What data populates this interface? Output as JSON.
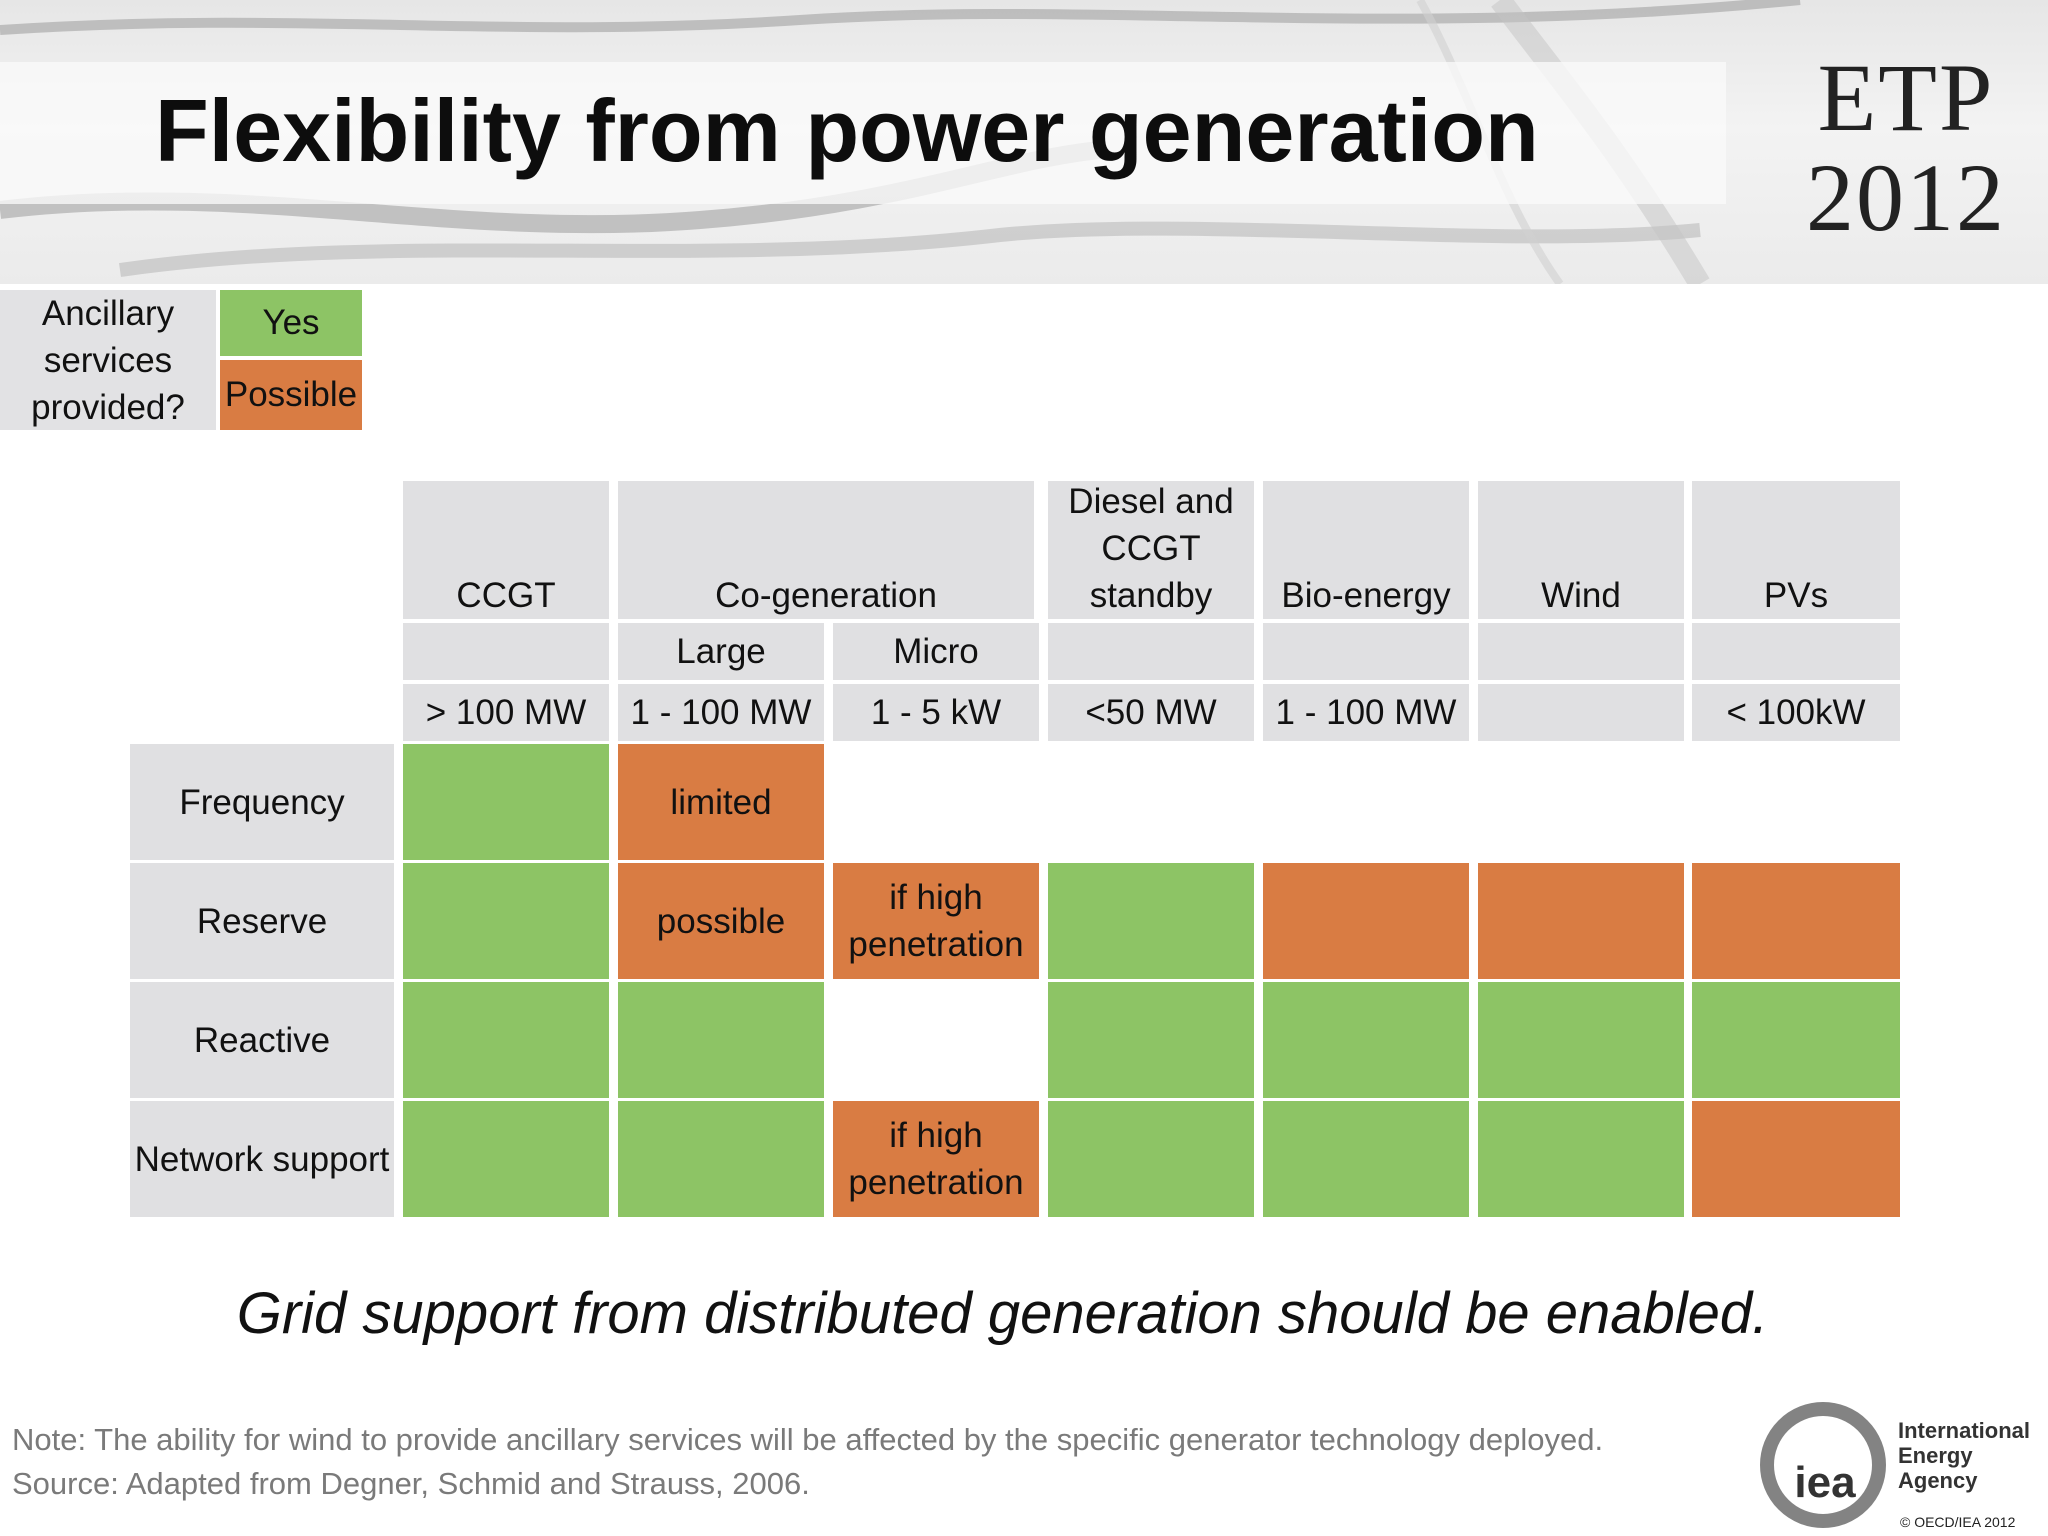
{
  "header": {
    "title": "Flexibility from power generation",
    "logo_line1": "ETP",
    "logo_line2": "2012"
  },
  "legend": {
    "question": "Ancillary services provided?",
    "yes": "Yes",
    "possible": "Possible"
  },
  "colors": {
    "yes": "#8dc465",
    "possible": "#d97c43",
    "header_gray": "#e0e0e2"
  },
  "table": {
    "columns": [
      "CCGT",
      "Co-generation",
      "Diesel and CCGT standby",
      "Bio-energy",
      "Wind",
      "PVs"
    ],
    "subcolumns": [
      "",
      "Large",
      "Micro",
      "",
      "",
      "",
      ""
    ],
    "capacities": [
      "> 100 MW",
      "1 - 100 MW",
      "1 - 5 kW",
      "<50 MW",
      "1 - 100 MW",
      "",
      "< 100kW"
    ],
    "rows": [
      {
        "label": "Frequency",
        "cells": [
          {
            "status": "yes",
            "text": ""
          },
          {
            "status": "possible",
            "text": "limited"
          },
          {
            "status": "none",
            "text": ""
          },
          {
            "status": "none",
            "text": ""
          },
          {
            "status": "none",
            "text": ""
          },
          {
            "status": "none",
            "text": ""
          },
          {
            "status": "none",
            "text": ""
          }
        ]
      },
      {
        "label": "Reserve",
        "cells": [
          {
            "status": "yes",
            "text": ""
          },
          {
            "status": "possible",
            "text": "possible"
          },
          {
            "status": "possible",
            "text": "if high penetration"
          },
          {
            "status": "yes",
            "text": ""
          },
          {
            "status": "possible",
            "text": ""
          },
          {
            "status": "possible",
            "text": ""
          },
          {
            "status": "possible",
            "text": ""
          }
        ]
      },
      {
        "label": "Reactive",
        "cells": [
          {
            "status": "yes",
            "text": ""
          },
          {
            "status": "yes",
            "text": ""
          },
          {
            "status": "none",
            "text": ""
          },
          {
            "status": "yes",
            "text": ""
          },
          {
            "status": "yes",
            "text": ""
          },
          {
            "status": "yes",
            "text": ""
          },
          {
            "status": "yes",
            "text": ""
          }
        ]
      },
      {
        "label": "Network support",
        "cells": [
          {
            "status": "yes",
            "text": ""
          },
          {
            "status": "yes",
            "text": ""
          },
          {
            "status": "possible",
            "text": "if high penetration"
          },
          {
            "status": "yes",
            "text": ""
          },
          {
            "status": "yes",
            "text": ""
          },
          {
            "status": "yes",
            "text": ""
          },
          {
            "status": "possible",
            "text": ""
          }
        ]
      }
    ]
  },
  "tagline": "Grid support from distributed generation should be enabled.",
  "footer": {
    "note": "Note: The ability for wind to provide ancillary services will be affected by the specific generator technology deployed.",
    "source": "Source: Adapted from Degner, Schmid and Strauss, 2006.",
    "iea_mark": "iea",
    "iea_line1": "International",
    "iea_line2": "Energy Agency",
    "copyright": "© OECD/IEA 2012"
  }
}
